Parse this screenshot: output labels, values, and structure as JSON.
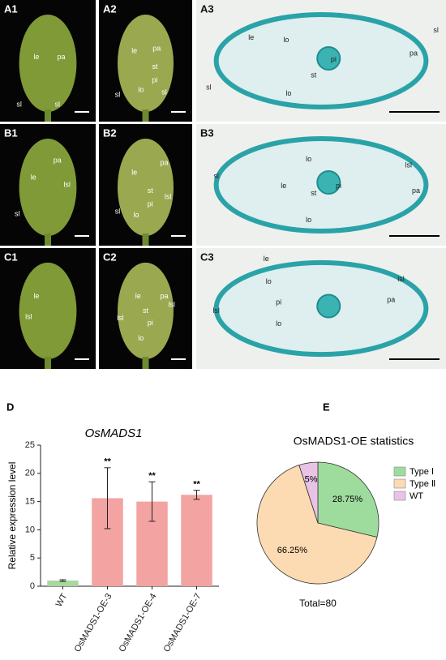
{
  "panels": [
    {
      "label": "A1",
      "annotations": [
        "le",
        "pa",
        "sl",
        "sl"
      ]
    },
    {
      "label": "A2",
      "annotations": [
        "le",
        "pa",
        "st",
        "pi",
        "lo",
        "sl",
        "sl"
      ]
    },
    {
      "label": "A3",
      "annotations": [
        "le",
        "lo",
        "pi",
        "st",
        "lo",
        "sl",
        "pa",
        "sl"
      ]
    },
    {
      "label": "B1",
      "annotations": [
        "pa",
        "le",
        "lsl",
        "sl"
      ]
    },
    {
      "label": "B2",
      "annotations": [
        "le",
        "pa",
        "lsl",
        "st",
        "pi",
        "sl",
        "lo"
      ]
    },
    {
      "label": "B3",
      "annotations": [
        "sl",
        "lo",
        "lsl",
        "le",
        "st",
        "pi",
        "pa",
        "lo"
      ]
    },
    {
      "label": "C1",
      "annotations": [
        "le",
        "lsl"
      ]
    },
    {
      "label": "C2",
      "annotations": [
        "le",
        "pa",
        "st",
        "lsl",
        "pi",
        "lsl",
        "lo"
      ]
    },
    {
      "label": "C3",
      "annotations": [
        "le",
        "lo",
        "lsl",
        "pi",
        "lsl",
        "pa",
        "lo"
      ]
    }
  ],
  "chart_data": [
    {
      "type": "bar",
      "panel": "D",
      "title": "OsMADS1",
      "y_label": "Relative expression level",
      "categories": [
        "WT",
        "OsMADS1-OE-3",
        "OsMADS1-OE-4",
        "OsMADS1-OE-7"
      ],
      "values": [
        1,
        15.6,
        15,
        16.2
      ],
      "errors": [
        0.15,
        5.4,
        3.5,
        0.8
      ],
      "significance": [
        null,
        "**",
        "**",
        "**"
      ],
      "colors": [
        "#a8d8a0",
        "#f4a3a3",
        "#f4a3a3",
        "#f4a3a3"
      ],
      "ylim": [
        0,
        25
      ],
      "yticks": [
        0,
        5,
        10,
        15,
        20,
        25
      ]
    },
    {
      "type": "pie",
      "panel": "E",
      "title": "OsMADS1-OE statistics",
      "categories": [
        "Type Ⅰ",
        "Type Ⅱ",
        "WT"
      ],
      "values": [
        28.75,
        66.25,
        5
      ],
      "value_labels": [
        "28.75%",
        "66.25%",
        "5%"
      ],
      "colors": [
        "#9edc9e",
        "#fcdab2",
        "#e9c3e6"
      ],
      "note": "Total=80"
    }
  ]
}
